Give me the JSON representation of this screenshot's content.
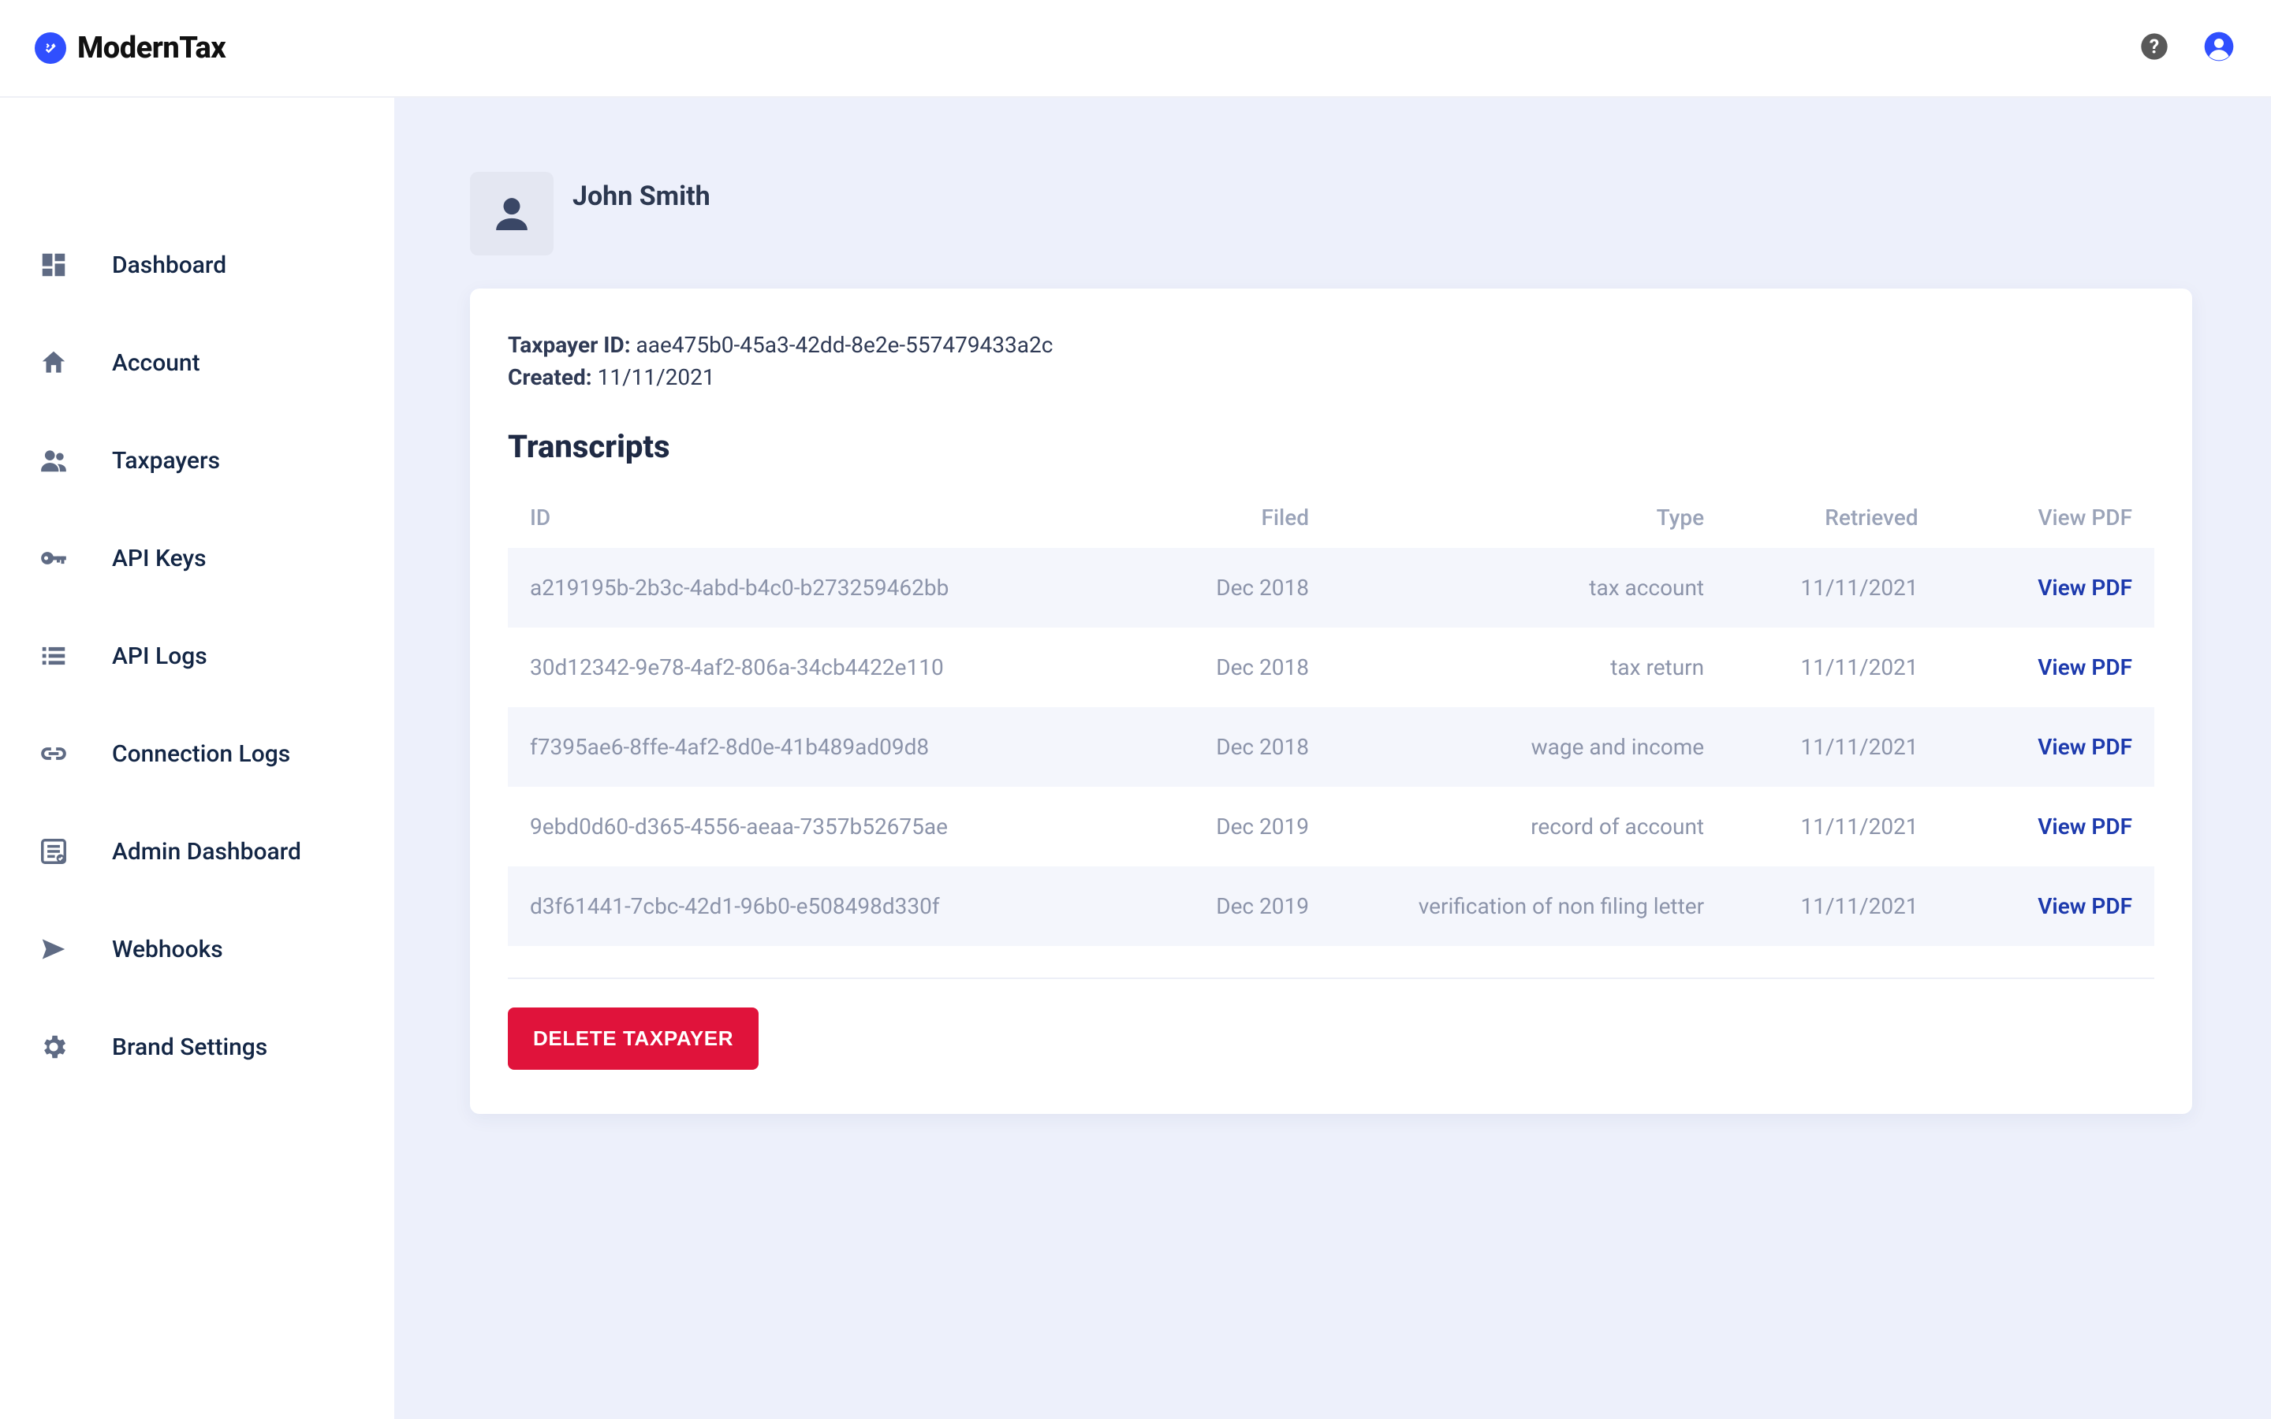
{
  "brand": {
    "name": "ModernTax",
    "accent": "#304ffe"
  },
  "topbar": {
    "help_icon": "help-circle",
    "account_icon": "account-circle"
  },
  "sidebar": {
    "items": [
      {
        "icon": "dashboard",
        "label": "Dashboard"
      },
      {
        "icon": "home",
        "label": "Account"
      },
      {
        "icon": "people",
        "label": "Taxpayers"
      },
      {
        "icon": "key",
        "label": "API Keys"
      },
      {
        "icon": "list",
        "label": "API Logs"
      },
      {
        "icon": "link",
        "label": "Connection Logs"
      },
      {
        "icon": "admin",
        "label": "Admin Dashboard"
      },
      {
        "icon": "send",
        "label": "Webhooks"
      },
      {
        "icon": "settings",
        "label": "Brand Settings"
      }
    ]
  },
  "page": {
    "title": "John Smith"
  },
  "taxpayer": {
    "id_label": "Taxpayer ID:",
    "id_value": "aae475b0-45a3-42dd-8e2e-557479433a2c",
    "created_label": "Created:",
    "created_value": "11/11/2021"
  },
  "transcripts": {
    "heading": "Transcripts",
    "columns": {
      "id": "ID",
      "filed": "Filed",
      "type": "Type",
      "retrieved": "Retrieved",
      "view_pdf": "View PDF"
    },
    "view_pdf_label": "View PDF",
    "rows": [
      {
        "id": "a219195b-2b3c-4abd-b4c0-b273259462bb",
        "filed": "Dec 2018",
        "type": "tax account",
        "retrieved": "11/11/2021"
      },
      {
        "id": "30d12342-9e78-4af2-806a-34cb4422e110",
        "filed": "Dec 2018",
        "type": "tax return",
        "retrieved": "11/11/2021"
      },
      {
        "id": "f7395ae6-8ffe-4af2-8d0e-41b489ad09d8",
        "filed": "Dec 2018",
        "type": "wage and income",
        "retrieved": "11/11/2021"
      },
      {
        "id": "9ebd0d60-d365-4556-aeaa-7357b52675ae",
        "filed": "Dec 2019",
        "type": "record of account",
        "retrieved": "11/11/2021"
      },
      {
        "id": "d3f61441-7cbc-42d1-96b0-e508498d330f",
        "filed": "Dec 2019",
        "type": "verification of non filing letter",
        "retrieved": "11/11/2021"
      }
    ]
  },
  "actions": {
    "delete_label": "DELETE TAXPAYER"
  },
  "colors": {
    "body_bg": "#edf0fb",
    "card_bg": "#ffffff",
    "row_stripe": "#f4f6fc",
    "link_blue": "#1d3aad",
    "danger": "#e0133b",
    "text_muted": "#9aa3b8"
  }
}
